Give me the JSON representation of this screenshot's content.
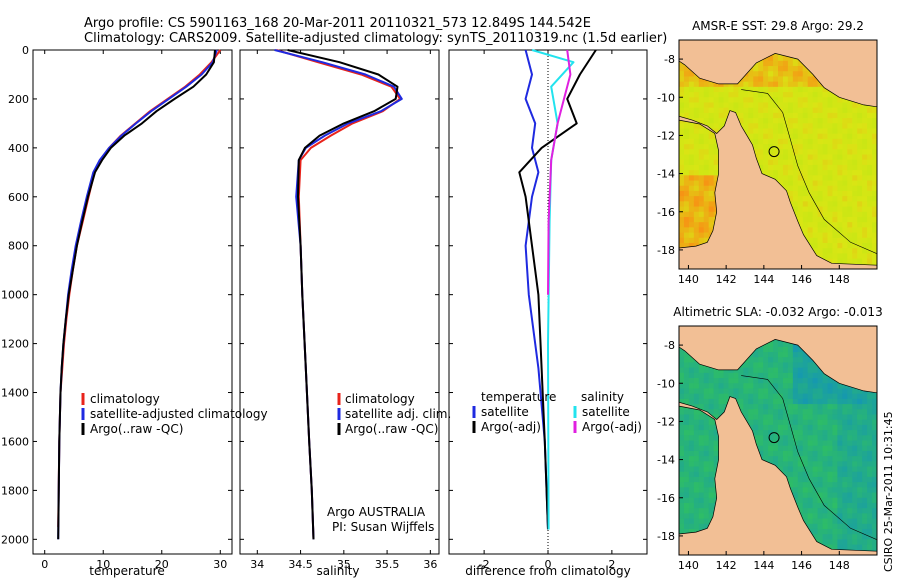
{
  "header": {
    "line1": "Argo profile: CS 5901163_168 20-Mar-2011 20110321_573 12.849S 144.542E",
    "line2": "Climatology: CARS2009. Satellite-adjusted climatology: synTS_20110319.nc (1.5d earlier)"
  },
  "stamp": "CSIRO 25-Mar-2011 10:31:45",
  "colors": {
    "red": "#e8231b",
    "blue": "#1f2ae0",
    "black": "#000000",
    "cyan": "#22e3ee",
    "magenta": "#e020e0",
    "land": "#f2bf95"
  },
  "chart_data": [
    {
      "type": "line",
      "id": "temperature",
      "xlabel": "temperature",
      "ylabel": "",
      "xlim": [
        -2,
        32
      ],
      "ylim": [
        2060,
        0
      ],
      "xticks": [
        0,
        10,
        20,
        30
      ],
      "yticks": [
        0,
        200,
        400,
        600,
        800,
        1000,
        1200,
        1400,
        1600,
        1800,
        2000
      ],
      "legend": [
        "climatology",
        "satellite-adjusted climatology",
        "Argo(..raw -QC)"
      ],
      "series": [
        {
          "name": "climatology",
          "color": "red",
          "x": [
            30,
            28.5,
            26.5,
            24,
            21,
            18,
            15.5,
            13,
            11,
            9.5,
            8.5,
            7.5,
            6.5,
            5.5,
            4.8,
            4.2,
            3.7,
            3.3,
            3.0,
            2.7,
            2.5,
            2.3
          ],
          "y": [
            0,
            50,
            100,
            150,
            200,
            250,
            300,
            350,
            400,
            450,
            500,
            600,
            700,
            800,
            900,
            1000,
            1100,
            1200,
            1300,
            1400,
            1600,
            1950
          ]
        },
        {
          "name": "satellite-adjusted climatology",
          "color": "blue",
          "x": [
            29.4,
            28.7,
            26.8,
            24.2,
            21.2,
            18.2,
            15.6,
            13.1,
            11.0,
            9.4,
            8.3,
            7.2,
            6.2,
            5.3,
            4.6,
            4.0,
            3.6,
            3.2,
            2.9,
            2.7,
            2.5,
            2.3
          ],
          "y": [
            0,
            50,
            100,
            150,
            200,
            250,
            300,
            350,
            400,
            450,
            500,
            600,
            700,
            800,
            900,
            1000,
            1100,
            1200,
            1300,
            1400,
            1600,
            2000
          ]
        },
        {
          "name": "Argo(..raw -QC)",
          "color": "black",
          "x": [
            29.1,
            28.9,
            27.6,
            25.4,
            22.2,
            19.1,
            16.6,
            13.6,
            11.3,
            9.8,
            8.6,
            7.4,
            6.4,
            5.5,
            4.8,
            4.1,
            3.6,
            3.2,
            2.9,
            2.7,
            2.5,
            2.3
          ],
          "y": [
            0,
            50,
            100,
            150,
            200,
            250,
            300,
            350,
            400,
            450,
            500,
            600,
            700,
            800,
            900,
            1000,
            1100,
            1200,
            1300,
            1400,
            1600,
            2000
          ]
        }
      ]
    },
    {
      "type": "line",
      "id": "salinity",
      "xlabel": "salinity",
      "ylabel": "",
      "xlim": [
        33.8,
        36.1
      ],
      "ylim": [
        2060,
        0
      ],
      "xticks": [
        34,
        34.5,
        35,
        35.5,
        36
      ],
      "legend": [
        "climatology",
        "satellite adj. clim.",
        "Argo(..raw -QC)"
      ],
      "annotation": [
        "Argo AUSTRALIA",
        "PI: Susan Wijffels"
      ],
      "series": [
        {
          "name": "climatology",
          "color": "red",
          "x": [
            34.22,
            34.7,
            35.2,
            35.55,
            35.65,
            35.45,
            35.1,
            34.85,
            34.62,
            34.5,
            34.48,
            34.5,
            34.52,
            34.56,
            34.6,
            34.63,
            34.65
          ],
          "y": [
            0,
            50,
            100,
            150,
            200,
            250,
            300,
            350,
            400,
            450,
            600,
            800,
            1000,
            1300,
            1600,
            1800,
            2000
          ]
        },
        {
          "name": "satellite adj. clim.",
          "color": "blue",
          "x": [
            34.2,
            34.75,
            35.25,
            35.58,
            35.67,
            35.43,
            35.05,
            34.78,
            34.56,
            34.48,
            34.45,
            34.5,
            34.52,
            34.56,
            34.6,
            34.63,
            34.65
          ],
          "y": [
            0,
            50,
            100,
            150,
            200,
            250,
            300,
            350,
            400,
            450,
            600,
            800,
            1000,
            1300,
            1600,
            1800,
            2000
          ]
        },
        {
          "name": "Argo(..raw -QC)",
          "color": "black",
          "x": [
            34.35,
            34.95,
            35.4,
            35.62,
            35.6,
            35.35,
            35.0,
            34.72,
            34.55,
            34.48,
            34.47,
            34.5,
            34.52,
            34.56,
            34.6,
            34.63,
            34.65
          ],
          "y": [
            0,
            50,
            100,
            150,
            200,
            250,
            300,
            350,
            400,
            450,
            600,
            800,
            1000,
            1300,
            1600,
            1800,
            2000
          ]
        }
      ]
    },
    {
      "type": "line",
      "id": "difference",
      "xlabel": "difference from climatology",
      "ylabel": "",
      "xlim": [
        -3.1,
        3.1
      ],
      "ylim": [
        2060,
        0
      ],
      "xticks": [
        -2,
        0,
        2
      ],
      "legend_headers": [
        "temperature",
        "salinity"
      ],
      "legend": [
        "satellite",
        "Argo(-adj)",
        "satellite",
        "Argo(-adj)"
      ],
      "series": [
        {
          "name": "temperature satellite",
          "color": "blue",
          "x": [
            -0.7,
            -0.5,
            -0.7,
            -0.4,
            -0.5,
            -0.3,
            -0.5,
            -0.6,
            -0.7,
            -0.6,
            -0.3,
            -0.1,
            0
          ],
          "y": [
            0,
            100,
            200,
            300,
            400,
            500,
            600,
            700,
            800,
            1000,
            1300,
            1600,
            1960
          ]
        },
        {
          "name": "temperature Argo(-adj)",
          "color": "black",
          "x": [
            1.5,
            1.0,
            0.6,
            0.9,
            -0.2,
            -0.9,
            -0.7,
            -0.5,
            -0.3,
            -0.2,
            -0.1,
            0
          ],
          "y": [
            0,
            100,
            200,
            300,
            400,
            500,
            600,
            800,
            1000,
            1300,
            1600,
            1960
          ]
        },
        {
          "name": "salinity satellite",
          "color": "cyan",
          "x": [
            -0.5,
            0.8,
            0.1,
            0.3,
            0.1,
            0.05,
            0,
            0.02
          ],
          "y": [
            0,
            50,
            150,
            300,
            450,
            700,
            1200,
            1960
          ]
        },
        {
          "name": "salinity Argo(-adj)",
          "color": "magenta",
          "x": [
            0.6,
            0.7,
            0.5,
            0.3,
            0.1,
            0.02,
            0
          ],
          "y": [
            0,
            100,
            200,
            300,
            450,
            700,
            1000
          ]
        }
      ]
    },
    {
      "type": "heatmap",
      "id": "sst-map",
      "title": "AMSR-E SST: 29.8 Argo: 29.2",
      "xlim": [
        139.5,
        150
      ],
      "ylim": [
        -19,
        -7
      ],
      "xticks": [
        140,
        142,
        144,
        146,
        148
      ],
      "yticks": [
        -8,
        -10,
        -12,
        -14,
        -16,
        -18
      ],
      "marker": {
        "lon": 144.542,
        "lat": -12.849
      }
    },
    {
      "type": "heatmap",
      "id": "sla-map",
      "title": "Altimetric SLA: -0.032 Argo: -0.013",
      "xlim": [
        139.5,
        150
      ],
      "ylim": [
        -19,
        -7
      ],
      "xticks": [
        140,
        142,
        144,
        146,
        148
      ],
      "yticks": [
        -8,
        -10,
        -12,
        -14,
        -16,
        -18
      ],
      "marker": {
        "lon": 144.542,
        "lat": -12.849
      }
    }
  ]
}
